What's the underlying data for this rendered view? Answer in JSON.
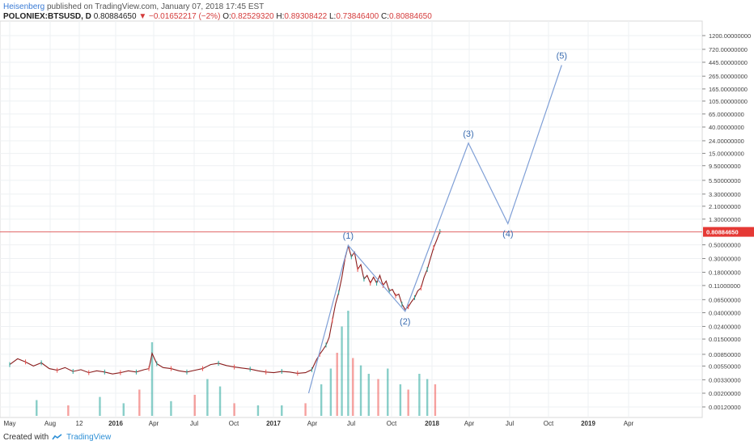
{
  "header": {
    "author": "Heisenberg",
    "published": "published on TradingView.com, January 07, 2018 17:45 EST"
  },
  "symbol": {
    "name": "POLONIEX:BTSUSD, D",
    "last": "0.80884650",
    "change": "−0.01652217 (−2%)",
    "o_label": "O:",
    "o": "0.82529320",
    "h_label": "H:",
    "h": "0.89308422",
    "l_label": "L:",
    "l": "0.73846400",
    "c_label": "C:",
    "c": "0.80884650"
  },
  "footer": {
    "created": "Created with",
    "brand": "TradingView"
  },
  "colors": {
    "up": "#26a69a",
    "down": "#ef5350",
    "wave": "#7f9fd6",
    "wave_label": "#3a6cb0",
    "price_line": "#e06666",
    "price_tag": "#e53935"
  },
  "chart_data": {
    "type": "line",
    "yscale": "log",
    "x_ticks": [
      "May",
      "Aug",
      "12",
      "2016",
      "Apr",
      "Jul",
      "Oct",
      "2017",
      "Apr",
      "Jul",
      "Oct",
      "2018",
      "Apr",
      "Jul",
      "Oct",
      "2019",
      "Apr"
    ],
    "x_ticks_bold": [
      "2016",
      "2017",
      "2018",
      "2019"
    ],
    "y_ticks": [
      "1200.00000000",
      "720.00000000",
      "445.00000000",
      "265.00000000",
      "165.00000000",
      "105.00000000",
      "65.00000000",
      "40.00000000",
      "24.00000000",
      "15.00000000",
      "9.50000000",
      "5.50000000",
      "3.30000000",
      "2.10000000",
      "1.30000000",
      "0.50000000",
      "0.30000000",
      "0.18000000",
      "0.11000000",
      "0.06500000",
      "0.04000000",
      "0.02400000",
      "0.01500000",
      "0.00850000",
      "0.00550000",
      "0.00330000",
      "0.00200000",
      "0.00120000"
    ],
    "y_values": [
      1200,
      720,
      445,
      265,
      165,
      105,
      65,
      40,
      24,
      15,
      9.5,
      5.5,
      3.3,
      2.1,
      1.3,
      0.5,
      0.3,
      0.18,
      0.11,
      0.065,
      0.04,
      0.024,
      0.015,
      0.0085,
      0.0055,
      0.0033,
      0.002,
      0.0012
    ],
    "last_price": 0.8088465,
    "last_price_label": "0.80884650",
    "wave_points": [
      {
        "label": "",
        "t": 2017.22,
        "y": 0.002
      },
      {
        "label": "(1)",
        "t": 2017.47,
        "y": 0.49
      },
      {
        "label": "(2)",
        "t": 2017.83,
        "y": 0.042
      },
      {
        "label": "(3)",
        "t": 2018.23,
        "y": 22
      },
      {
        "label": "(4)",
        "t": 2018.48,
        "y": 1.1
      },
      {
        "label": "(5)",
        "t": 2018.82,
        "y": 400
      }
    ],
    "price_series": [
      [
        2015.33,
        0.0058
      ],
      [
        2015.38,
        0.0072
      ],
      [
        2015.43,
        0.0064
      ],
      [
        2015.48,
        0.0055
      ],
      [
        2015.53,
        0.0062
      ],
      [
        2015.58,
        0.005
      ],
      [
        2015.63,
        0.0047
      ],
      [
        2015.68,
        0.0052
      ],
      [
        2015.73,
        0.0045
      ],
      [
        2015.78,
        0.0048
      ],
      [
        2015.83,
        0.0043
      ],
      [
        2015.88,
        0.0046
      ],
      [
        2015.93,
        0.0044
      ],
      [
        2015.98,
        0.0041
      ],
      [
        2016.03,
        0.0043
      ],
      [
        2016.08,
        0.0046
      ],
      [
        2016.13,
        0.0044
      ],
      [
        2016.18,
        0.0048
      ],
      [
        2016.21,
        0.005
      ],
      [
        2016.23,
        0.0088
      ],
      [
        2016.26,
        0.006
      ],
      [
        2016.3,
        0.0052
      ],
      [
        2016.35,
        0.005
      ],
      [
        2016.4,
        0.0046
      ],
      [
        2016.45,
        0.0044
      ],
      [
        2016.5,
        0.0047
      ],
      [
        2016.55,
        0.005
      ],
      [
        2016.6,
        0.0058
      ],
      [
        2016.65,
        0.0061
      ],
      [
        2016.7,
        0.0056
      ],
      [
        2016.75,
        0.0053
      ],
      [
        2016.8,
        0.0051
      ],
      [
        2016.85,
        0.0049
      ],
      [
        2016.9,
        0.0046
      ],
      [
        2016.95,
        0.0044
      ],
      [
        2017.0,
        0.0043
      ],
      [
        2017.05,
        0.0045
      ],
      [
        2017.1,
        0.0044
      ],
      [
        2017.15,
        0.0042
      ],
      [
        2017.2,
        0.0043
      ],
      [
        2017.24,
        0.0048
      ],
      [
        2017.27,
        0.007
      ],
      [
        2017.29,
        0.0085
      ],
      [
        2017.31,
        0.01
      ],
      [
        2017.33,
        0.012
      ],
      [
        2017.35,
        0.016
      ],
      [
        2017.37,
        0.03
      ],
      [
        2017.39,
        0.055
      ],
      [
        2017.41,
        0.085
      ],
      [
        2017.43,
        0.15
      ],
      [
        2017.45,
        0.3
      ],
      [
        2017.47,
        0.48
      ],
      [
        2017.49,
        0.32
      ],
      [
        2017.51,
        0.38
      ],
      [
        2017.53,
        0.2
      ],
      [
        2017.55,
        0.24
      ],
      [
        2017.57,
        0.14
      ],
      [
        2017.59,
        0.16
      ],
      [
        2017.61,
        0.12
      ],
      [
        2017.63,
        0.15
      ],
      [
        2017.65,
        0.12
      ],
      [
        2017.67,
        0.16
      ],
      [
        2017.69,
        0.11
      ],
      [
        2017.71,
        0.13
      ],
      [
        2017.73,
        0.09
      ],
      [
        2017.75,
        0.095
      ],
      [
        2017.77,
        0.075
      ],
      [
        2017.79,
        0.08
      ],
      [
        2017.81,
        0.055
      ],
      [
        2017.83,
        0.045
      ],
      [
        2017.85,
        0.05
      ],
      [
        2017.87,
        0.06
      ],
      [
        2017.89,
        0.07
      ],
      [
        2017.91,
        0.09
      ],
      [
        2017.93,
        0.1
      ],
      [
        2017.95,
        0.15
      ],
      [
        2017.97,
        0.2
      ],
      [
        2017.99,
        0.3
      ],
      [
        2018.01,
        0.45
      ],
      [
        2018.03,
        0.6
      ],
      [
        2018.05,
        0.82
      ],
      [
        2018.06,
        0.81
      ]
    ],
    "volume_series": [
      [
        2015.5,
        0.15
      ],
      [
        2015.7,
        0.1
      ],
      [
        2015.9,
        0.18
      ],
      [
        2016.05,
        0.12
      ],
      [
        2016.15,
        0.25
      ],
      [
        2016.23,
        0.7
      ],
      [
        2016.35,
        0.14
      ],
      [
        2016.5,
        0.2
      ],
      [
        2016.58,
        0.35
      ],
      [
        2016.66,
        0.28
      ],
      [
        2016.75,
        0.12
      ],
      [
        2016.9,
        0.1
      ],
      [
        2017.05,
        0.1
      ],
      [
        2017.2,
        0.12
      ],
      [
        2017.3,
        0.3
      ],
      [
        2017.36,
        0.45
      ],
      [
        2017.4,
        0.6
      ],
      [
        2017.43,
        0.85
      ],
      [
        2017.47,
        1.0
      ],
      [
        2017.5,
        0.55
      ],
      [
        2017.55,
        0.48
      ],
      [
        2017.6,
        0.4
      ],
      [
        2017.66,
        0.35
      ],
      [
        2017.72,
        0.45
      ],
      [
        2017.8,
        0.3
      ],
      [
        2017.85,
        0.25
      ],
      [
        2017.92,
        0.4
      ],
      [
        2017.97,
        0.35
      ],
      [
        2018.02,
        0.3
      ]
    ]
  }
}
